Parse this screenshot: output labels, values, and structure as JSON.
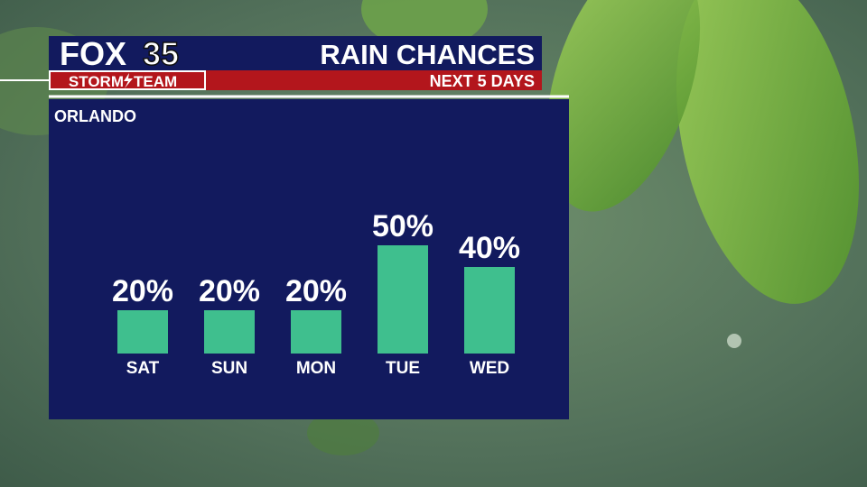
{
  "station": {
    "network": "FOX",
    "channel": "35",
    "team_left": "STORM",
    "team_right": "TEAM"
  },
  "chart_data": {
    "type": "bar",
    "title": "RAIN CHANCES",
    "subtitle": "NEXT 5 DAYS",
    "location": "ORLANDO",
    "categories": [
      "SAT",
      "SUN",
      "MON",
      "TUE",
      "WED"
    ],
    "values": [
      20,
      20,
      20,
      50,
      40
    ],
    "value_labels": [
      "20%",
      "20%",
      "20%",
      "50%",
      "40%"
    ],
    "color": "#3fbf8e"
  }
}
